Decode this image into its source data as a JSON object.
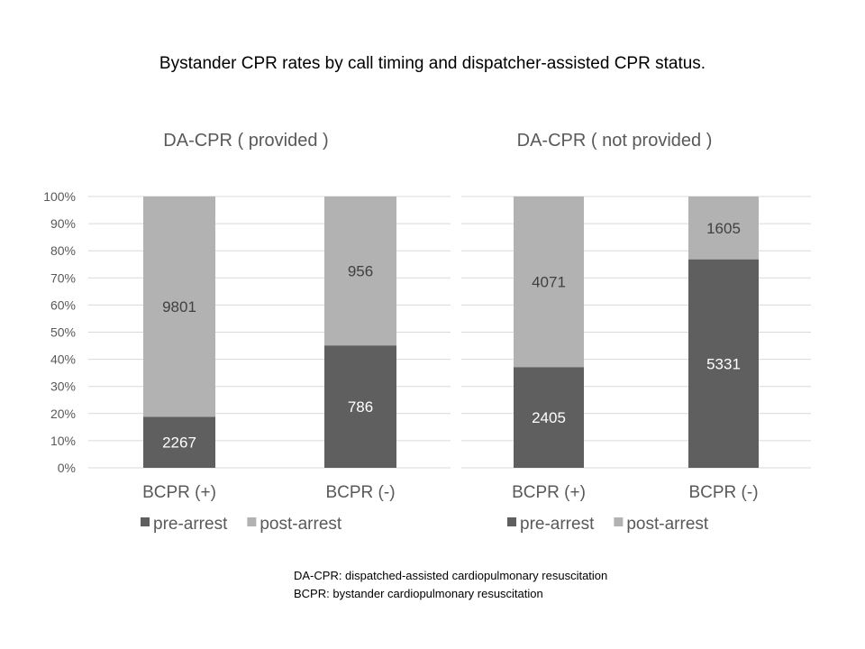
{
  "title": "Bystander CPR rates by call timing and dispatcher-assisted CPR status.",
  "colors": {
    "pre": "#5f5f5f",
    "post": "#b2b2b2",
    "grid": "#d9d9d9"
  },
  "chart_data": [
    {
      "type": "bar",
      "stacked": "percent",
      "title": "DA-CPR ( provided )",
      "categories": [
        "BCPR (+)",
        "BCPR (-)"
      ],
      "series": [
        {
          "name": "pre-arrest",
          "values": [
            2267,
            786
          ]
        },
        {
          "name": "post-arrest",
          "values": [
            9801,
            956
          ]
        }
      ],
      "yticks": [
        "0%",
        "10%",
        "20%",
        "30%",
        "40%",
        "50%",
        "60%",
        "70%",
        "80%",
        "90%",
        "100%"
      ],
      "ylim": [
        0,
        100
      ],
      "grid": true,
      "legend": "bottom"
    },
    {
      "type": "bar",
      "stacked": "percent",
      "title": "DA-CPR ( not provided )",
      "categories": [
        "BCPR (+)",
        "BCPR (-)"
      ],
      "series": [
        {
          "name": "pre-arrest",
          "values": [
            2405,
            5331
          ]
        },
        {
          "name": "post-arrest",
          "values": [
            4071,
            1605
          ]
        }
      ],
      "ylim": [
        0,
        100
      ],
      "grid": true,
      "legend": "bottom"
    }
  ],
  "footnotes": [
    "DA-CPR: dispatched-assisted cardiopulmonary resuscitation",
    "BCPR: bystander cardiopulmonary resuscitation"
  ]
}
